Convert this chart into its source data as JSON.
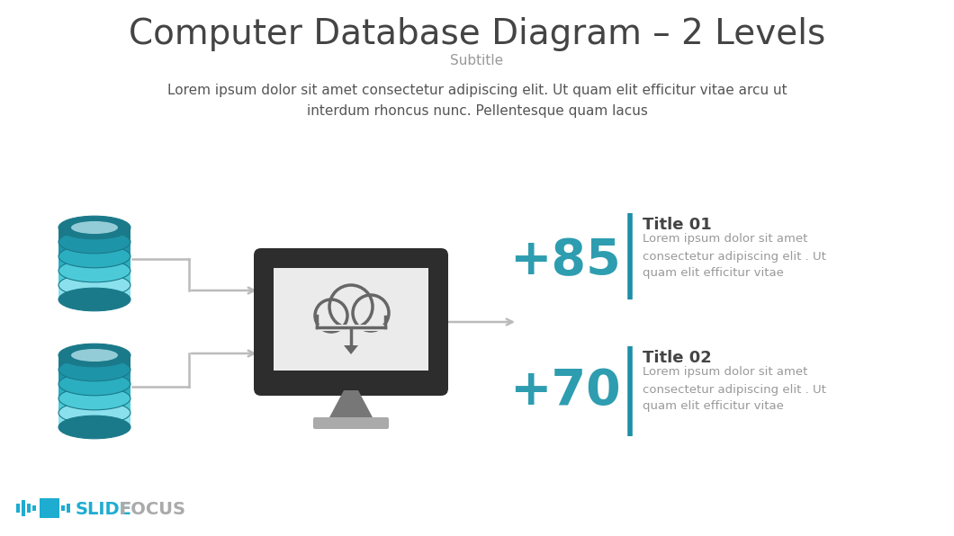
{
  "title": "Computer Database Diagram – 2 Levels",
  "subtitle": "Subtitle",
  "body_text": "Lorem ipsum dolor sit amet consectetur adipiscing elit. Ut quam elit efficitur vitae arcu ut\ninterdum rhoncus nunc. Pellentesque quam lacus",
  "teal_color": "#2E9DB0",
  "dark_teal": "#1A7A8A",
  "light_teal": "#56C8D8",
  "lighter_teal": "#A8E8F0",
  "lightest_teal": "#D8F4F8",
  "title_color": "#444444",
  "subtitle_color": "#999999",
  "body_color": "#555555",
  "stat1": "+85",
  "stat2": "+70",
  "title1": "Title 01",
  "title2": "Title 02",
  "desc1": "Lorem ipsum dolor sit amet\nconsectetur adipiscing elit . Ut\nquam elit efficitur vitae",
  "desc2": "Lorem ipsum dolor sit amet\nconsectetur adipiscing elit . Ut\nquam elit efficitur vitae",
  "arrow_color": "#BBBBBB",
  "monitor_body": "#2D2D2D",
  "monitor_screen": "#EBEBEB",
  "monitor_stand": "#777777",
  "monitor_base": "#AAAAAA",
  "cloud_stroke": "#666666",
  "slidefocus_teal": "#1EACD1",
  "slidefocus_gray": "#AAAAAA",
  "bar_color": "#1E8FA8",
  "stat_color": "#2E9DB0",
  "db_layers": [
    "#1A7A8A",
    "#2094A8",
    "#3AB8CC",
    "#5CD4E4",
    "#A0E8F2",
    "#D0F4FA"
  ],
  "db_outline": "#1A7A8A"
}
